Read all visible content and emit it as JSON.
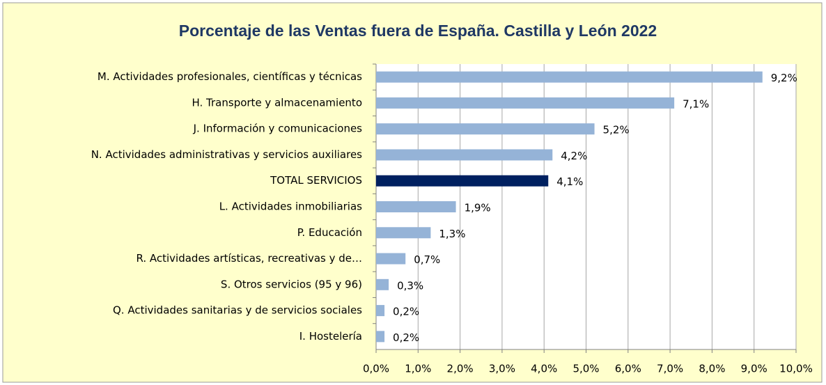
{
  "chart_data": {
    "type": "bar",
    "orientation": "horizontal",
    "title": "Porcentaje de las Ventas fuera de España. Castilla y León 2022",
    "categories": [
      "M. Actividades profesionales, científicas y técnicas",
      "H. Transporte y almacenamiento",
      "J. Información y comunicaciones",
      "N. Actividades administrativas y servicios auxiliares",
      "TOTAL SERVICIOS",
      "L. Actividades inmobiliarias",
      "P. Educación",
      "R. Actividades artísticas, recreativas y de…",
      "S. Otros servicios (95 y 96)",
      "Q. Actividades sanitarias y de servicios sociales",
      "I. Hostelería"
    ],
    "values": [
      9.2,
      7.1,
      5.2,
      4.2,
      4.1,
      1.9,
      1.3,
      0.7,
      0.3,
      0.2,
      0.2
    ],
    "value_labels": [
      "9,2%",
      "7,1%",
      "5,2%",
      "4,2%",
      "4,1%",
      "1,9%",
      "1,3%",
      "0,7%",
      "0,3%",
      "0,2%",
      "0,2%"
    ],
    "colors": [
      "#95b3d7",
      "#95b3d7",
      "#95b3d7",
      "#95b3d7",
      "#002060",
      "#95b3d7",
      "#95b3d7",
      "#95b3d7",
      "#95b3d7",
      "#95b3d7",
      "#95b3d7"
    ],
    "xlim": [
      0,
      10
    ],
    "xticks": [
      {
        "value": 0,
        "label": "0,0%"
      },
      {
        "value": 1,
        "label": "1,0%"
      },
      {
        "value": 2,
        "label": "2,0%"
      },
      {
        "value": 3,
        "label": "3,0%"
      },
      {
        "value": 4,
        "label": "4,0%"
      },
      {
        "value": 5,
        "label": "5,0%"
      },
      {
        "value": 6,
        "label": "6,0%"
      },
      {
        "value": 7,
        "label": "7,0%"
      },
      {
        "value": 8,
        "label": "8,0%"
      },
      {
        "value": 9,
        "label": "9,0%"
      },
      {
        "value": 10,
        "label": "10,0%"
      }
    ],
    "grid": true
  }
}
